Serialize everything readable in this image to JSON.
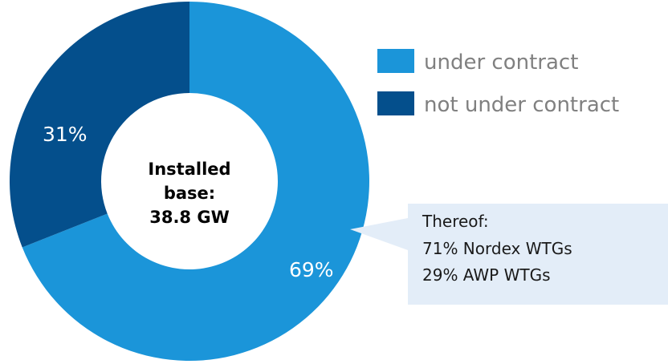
{
  "chart_data": {
    "type": "pie",
    "variant": "donut",
    "center_label": [
      "Installed",
      "base:",
      "38.8 GW"
    ],
    "slices": [
      {
        "label": "under contract",
        "value": 69,
        "value_label": "69%",
        "color": "#1b95d9"
      },
      {
        "label": "not under contract",
        "value": 31,
        "value_label": "31%",
        "color": "#044f8c"
      }
    ],
    "legend": {
      "placement": "top-right",
      "entries": [
        "under contract",
        "not under contract"
      ]
    },
    "callout": {
      "attached_to": "under contract",
      "background": "#e3edf8",
      "lines": [
        "Thereof:",
        "71% Nordex WTGs",
        "29% AWP WTGs"
      ]
    }
  }
}
